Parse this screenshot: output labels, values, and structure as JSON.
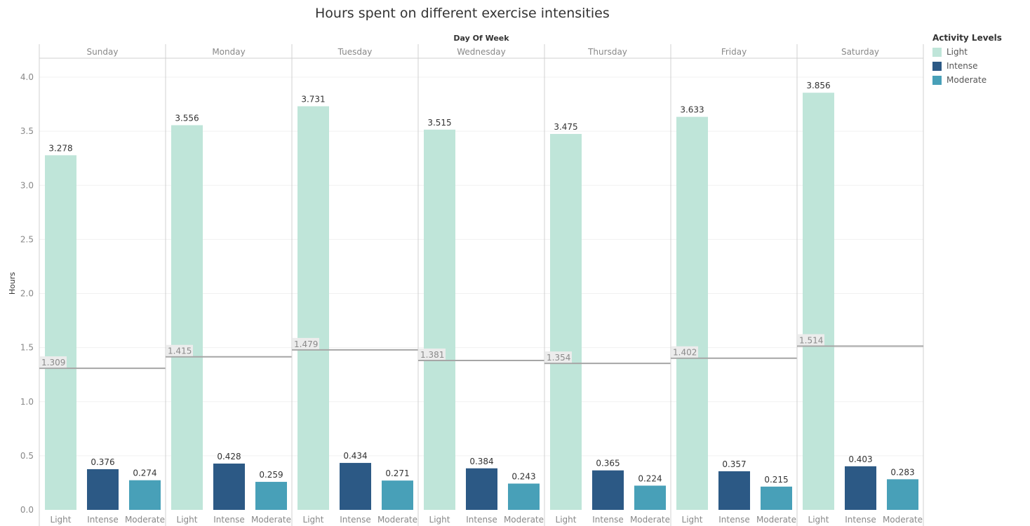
{
  "chart_data": {
    "type": "bar",
    "title": "Hours spent on different exercise intensities",
    "column_header": "Day Of Week",
    "ylabel": "Hours",
    "ylim": [
      0,
      4.2
    ],
    "yticks": [
      "0.0",
      "0.5",
      "1.0",
      "1.5",
      "2.0",
      "2.5",
      "3.0",
      "3.5",
      "4.0"
    ],
    "grid": true,
    "legend": {
      "title": "Activity Levels",
      "placement": "right",
      "items": [
        {
          "name": "Light",
          "color": "#bfe5d9"
        },
        {
          "name": "Intense",
          "color": "#2c5985"
        },
        {
          "name": "Moderate",
          "color": "#48a0b8"
        }
      ]
    },
    "categories": [
      "Light",
      "Intense",
      "Moderate"
    ],
    "panels": [
      {
        "day": "Sunday",
        "values": [
          3.278,
          0.376,
          0.274
        ],
        "labels": [
          "3.278",
          "0.376",
          "0.274"
        ],
        "reference": 1.309,
        "reference_label": "1.309"
      },
      {
        "day": "Monday",
        "values": [
          3.556,
          0.428,
          0.259
        ],
        "labels": [
          "3.556",
          "0.428",
          "0.259"
        ],
        "reference": 1.415,
        "reference_label": "1.415"
      },
      {
        "day": "Tuesday",
        "values": [
          3.731,
          0.434,
          0.271
        ],
        "labels": [
          "3.731",
          "0.434",
          "0.271"
        ],
        "reference": 1.479,
        "reference_label": "1.479"
      },
      {
        "day": "Wednesday",
        "values": [
          3.515,
          0.384,
          0.243
        ],
        "labels": [
          "3.515",
          "0.384",
          "0.243"
        ],
        "reference": 1.381,
        "reference_label": "1.381"
      },
      {
        "day": "Thursday",
        "values": [
          3.475,
          0.365,
          0.224
        ],
        "labels": [
          "3.475",
          "0.365",
          "0.224"
        ],
        "reference": 1.354,
        "reference_label": "1.354"
      },
      {
        "day": "Friday",
        "values": [
          3.633,
          0.357,
          0.215
        ],
        "labels": [
          "3.633",
          "0.357",
          "0.215"
        ],
        "reference": 1.402,
        "reference_label": "1.402"
      },
      {
        "day": "Saturday",
        "values": [
          3.856,
          0.403,
          0.283
        ],
        "labels": [
          "3.856",
          "0.403",
          "0.283"
        ],
        "reference": 1.514,
        "reference_label": "1.514"
      }
    ],
    "colors": {
      "reference_line": "#a6a6a6",
      "reference_label_bg": "#ececec",
      "reference_label_text": "#8a8a8a",
      "gridline": "#f0f0f0",
      "divider": "#d0d0d0",
      "axis_text": "#888888",
      "data_label": "#333333"
    }
  }
}
